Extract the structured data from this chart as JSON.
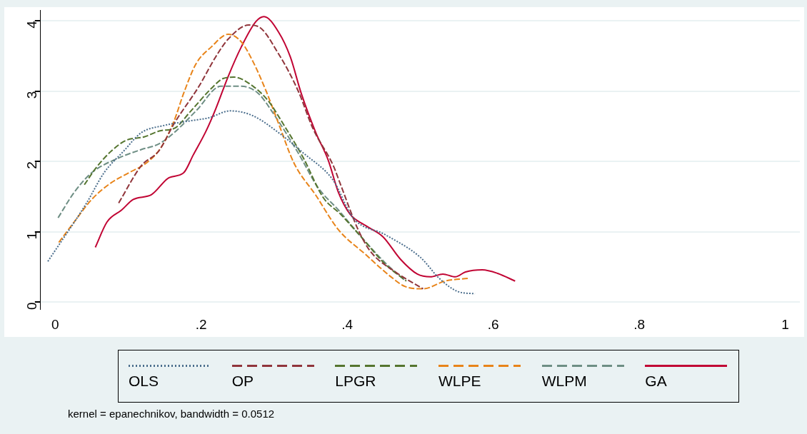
{
  "chart_data": {
    "type": "line",
    "xlim": [
      -0.02,
      1.02
    ],
    "ylim": [
      -0.1,
      4.15
    ],
    "xticks": [
      0,
      {
        "value": 0.2,
        "label": ".2"
      },
      {
        "value": 0.4,
        "label": ".4"
      },
      {
        "value": 0.6,
        "label": ".6"
      },
      {
        "value": 0.8,
        "label": ".8"
      },
      1
    ],
    "yticks": [
      0,
      1,
      2,
      3,
      4
    ],
    "grid": "y",
    "legend": "bottom",
    "marker": "none",
    "annotations": [
      "kernel = epanechnikov, bandwidth = 0.0512"
    ],
    "series": [
      {
        "name": "OLS",
        "color": "#4a6d8c",
        "line_style": "dotted",
        "x": [
          -0.01,
          0.043,
          0.067,
          0.094,
          0.118,
          0.148,
          0.186,
          0.21,
          0.24,
          0.271,
          0.306,
          0.34,
          0.381,
          0.408,
          0.452,
          0.5,
          0.527,
          0.552,
          0.575
        ],
        "values": [
          0.58,
          1.41,
          1.84,
          2.15,
          2.41,
          2.51,
          2.58,
          2.62,
          2.72,
          2.65,
          2.41,
          2.12,
          1.73,
          1.2,
          0.96,
          0.64,
          0.33,
          0.15,
          0.12
        ]
      },
      {
        "name": "OP",
        "color": "#90353b",
        "line_style": "dashed",
        "x": [
          0.087,
          0.118,
          0.142,
          0.163,
          0.197,
          0.22,
          0.237,
          0.265,
          0.278,
          0.306,
          0.333,
          0.353,
          0.381,
          0.391,
          0.415,
          0.432,
          0.466,
          0.504
        ],
        "values": [
          1.41,
          1.94,
          2.15,
          2.54,
          3.07,
          3.49,
          3.74,
          3.94,
          3.92,
          3.53,
          3.0,
          2.47,
          1.94,
          1.67,
          1.03,
          0.72,
          0.43,
          0.19
        ]
      },
      {
        "name": "LPGR",
        "color": "#55752f",
        "line_style": "dashed",
        "x": [
          0.04,
          0.056,
          0.077,
          0.097,
          0.122,
          0.145,
          0.163,
          0.186,
          0.214,
          0.23,
          0.245,
          0.271,
          0.292,
          0.312,
          0.34,
          0.367,
          0.391,
          0.419,
          0.452,
          0.481
        ],
        "values": [
          1.67,
          1.91,
          2.15,
          2.3,
          2.35,
          2.44,
          2.47,
          2.72,
          3.04,
          3.18,
          3.2,
          3.07,
          2.86,
          2.54,
          2.05,
          1.49,
          1.25,
          0.93,
          0.54,
          0.3
        ]
      },
      {
        "name": "WLPE",
        "color": "#e8841a",
        "line_style": "dashed",
        "x": [
          0.005,
          0.026,
          0.05,
          0.077,
          0.101,
          0.125,
          0.145,
          0.163,
          0.176,
          0.193,
          0.214,
          0.237,
          0.255,
          0.271,
          0.289,
          0.306,
          0.327,
          0.357,
          0.388,
          0.425,
          0.46,
          0.48,
          0.504,
          0.534,
          0.567
        ],
        "values": [
          0.85,
          1.14,
          1.46,
          1.7,
          1.84,
          1.98,
          2.2,
          2.58,
          2.97,
          3.39,
          3.63,
          3.81,
          3.7,
          3.42,
          3.0,
          2.54,
          1.98,
          1.52,
          1.03,
          0.68,
          0.36,
          0.22,
          0.19,
          0.3,
          0.34
        ]
      },
      {
        "name": "WLPM",
        "color": "#6e8e84",
        "line_style": "dashed",
        "x": [
          0.004,
          0.026,
          0.05,
          0.087,
          0.118,
          0.142,
          0.163,
          0.193,
          0.227,
          0.255,
          0.278,
          0.299,
          0.333,
          0.36,
          0.388,
          0.419,
          0.452,
          0.48
        ],
        "values": [
          1.2,
          1.56,
          1.84,
          2.05,
          2.17,
          2.25,
          2.41,
          2.72,
          3.07,
          3.07,
          2.97,
          2.68,
          2.12,
          1.63,
          1.31,
          0.93,
          0.56,
          0.3
        ]
      },
      {
        "name": "GA",
        "color": "#c10534",
        "line_style": "solid",
        "x": [
          0.055,
          0.071,
          0.091,
          0.107,
          0.132,
          0.156,
          0.176,
          0.189,
          0.207,
          0.22,
          0.237,
          0.255,
          0.275,
          0.286,
          0.306,
          0.322,
          0.337,
          0.357,
          0.374,
          0.388,
          0.404,
          0.425,
          0.449,
          0.473,
          0.496,
          0.514,
          0.531,
          0.548,
          0.562,
          0.585,
          0.606,
          0.63
        ],
        "values": [
          0.78,
          1.14,
          1.31,
          1.46,
          1.53,
          1.77,
          1.84,
          2.09,
          2.44,
          2.75,
          3.21,
          3.63,
          3.99,
          4.06,
          3.84,
          3.49,
          2.97,
          2.41,
          2.02,
          1.56,
          1.25,
          1.09,
          0.93,
          0.61,
          0.4,
          0.36,
          0.4,
          0.36,
          0.43,
          0.46,
          0.41,
          0.3
        ]
      }
    ]
  }
}
